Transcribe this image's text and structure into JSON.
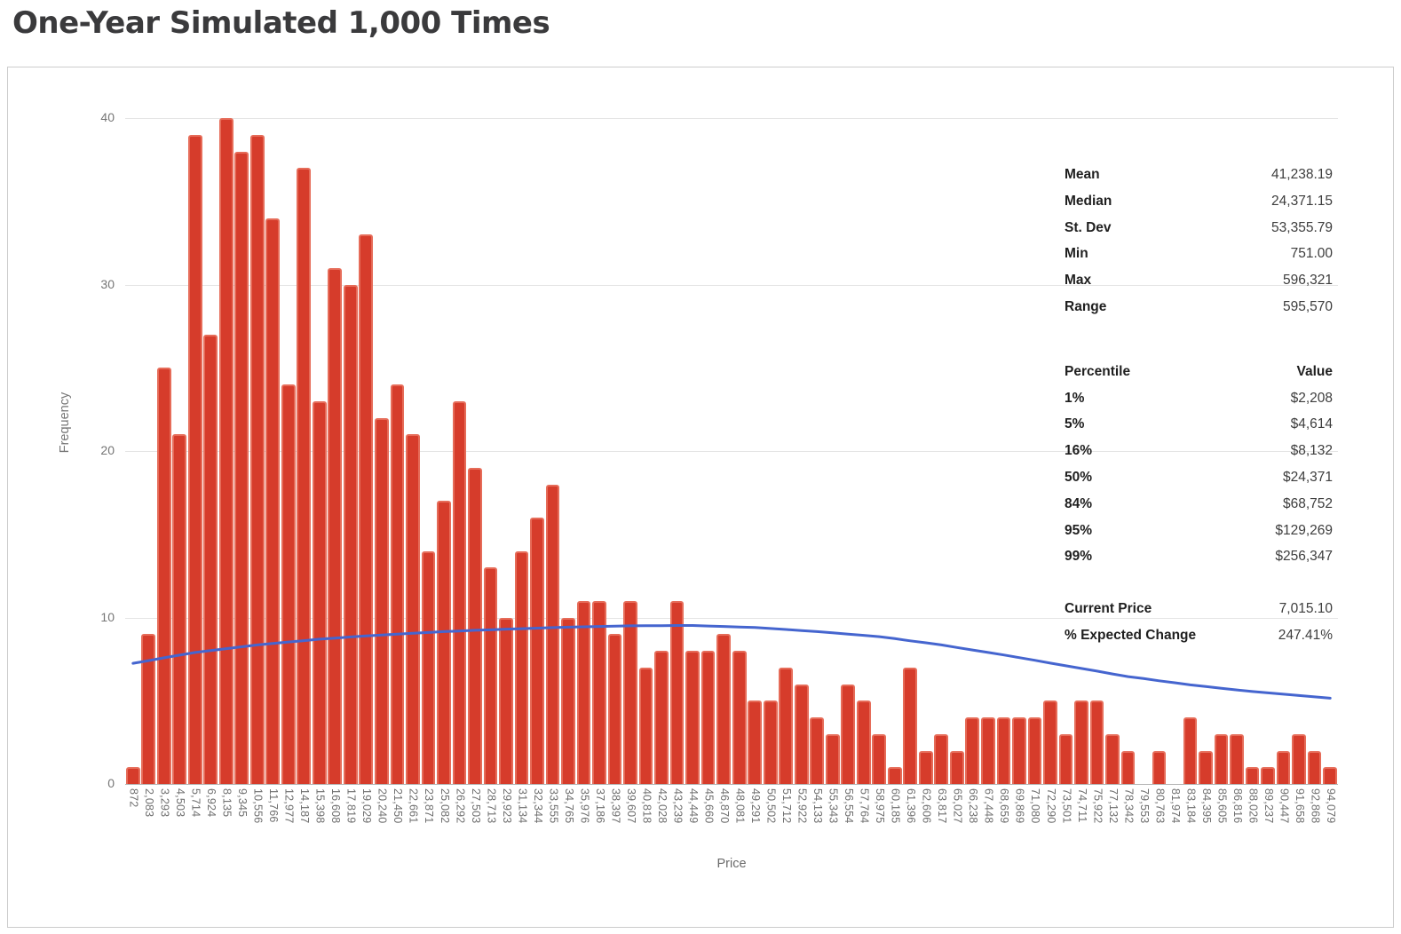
{
  "page": {
    "title": "One-Year Simulated 1,000 Times"
  },
  "chart_data": {
    "type": "bar",
    "title": "One-Year Simulated 1,000 Times",
    "xlabel": "Price",
    "ylabel": "Frequency",
    "ylim": [
      0,
      40
    ],
    "yticks": [
      0,
      10,
      20,
      30,
      40
    ],
    "grid": "horizontal only",
    "legend": "none",
    "bar_color": "#d63c2b",
    "bar_edge_color": "#e66c59",
    "trend_line_color": "#4565cf",
    "categories": [
      "872",
      "2,083",
      "3,293",
      "4,503",
      "5,714",
      "6,924",
      "8,135",
      "9,345",
      "10,556",
      "11,766",
      "12,977",
      "14,187",
      "15,398",
      "16,608",
      "17,819",
      "19,029",
      "20,240",
      "21,450",
      "22,661",
      "23,871",
      "25,082",
      "26,292",
      "27,503",
      "28,713",
      "29,923",
      "31,134",
      "32,344",
      "33,555",
      "34,765",
      "35,976",
      "37,186",
      "38,397",
      "39,607",
      "40,818",
      "42,028",
      "43,239",
      "44,449",
      "45,660",
      "46,870",
      "48,081",
      "49,291",
      "50,502",
      "51,712",
      "52,922",
      "54,133",
      "55,343",
      "56,554",
      "57,764",
      "58,975",
      "60,185",
      "61,396",
      "62,606",
      "63,817",
      "65,027",
      "66,238",
      "67,448",
      "68,659",
      "69,869",
      "71,080",
      "72,290",
      "73,501",
      "74,711",
      "75,922",
      "77,132",
      "78,342",
      "79,553",
      "80,763",
      "81,974",
      "83,184",
      "84,395",
      "85,605",
      "86,816",
      "88,026",
      "89,237",
      "90,447",
      "91,658",
      "92,868",
      "94,079"
    ],
    "values": [
      1,
      9,
      25,
      21,
      39,
      27,
      40,
      38,
      39,
      34,
      24,
      37,
      23,
      31,
      30,
      33,
      22,
      24,
      21,
      14,
      17,
      23,
      19,
      13,
      10,
      14,
      16,
      18,
      10,
      11,
      11,
      9,
      11,
      7,
      8,
      11,
      8,
      8,
      9,
      8,
      5,
      5,
      7,
      6,
      4,
      3,
      6,
      5,
      3,
      1,
      7,
      2,
      3,
      2,
      4,
      4,
      4,
      4,
      4,
      5,
      3,
      5,
      5,
      3,
      2,
      0,
      2,
      0,
      4,
      2,
      3,
      3,
      1,
      1,
      2,
      3,
      2,
      1
    ],
    "trend_line": {
      "name": "fitted-frequency-curve",
      "values": [
        7.25,
        7.41,
        7.58,
        7.74,
        7.9,
        8.01,
        8.13,
        8.24,
        8.35,
        8.44,
        8.53,
        8.61,
        8.7,
        8.76,
        8.83,
        8.89,
        8.95,
        9.0,
        9.05,
        9.1,
        9.15,
        9.19,
        9.23,
        9.26,
        9.3,
        9.33,
        9.36,
        9.39,
        9.42,
        9.44,
        9.46,
        9.48,
        9.5,
        9.51,
        9.51,
        9.52,
        9.52,
        9.49,
        9.46,
        9.43,
        9.4,
        9.34,
        9.28,
        9.21,
        9.15,
        9.08,
        9.0,
        8.93,
        8.85,
        8.73,
        8.6,
        8.48,
        8.35,
        8.2,
        8.05,
        7.9,
        7.75,
        7.59,
        7.43,
        7.26,
        7.1,
        6.94,
        6.78,
        6.61,
        6.45,
        6.33,
        6.2,
        6.08,
        5.95,
        5.85,
        5.75,
        5.65,
        5.55,
        5.47,
        5.39,
        5.31,
        5.23,
        5.15
      ]
    }
  },
  "stats": {
    "summary_rows": [
      {
        "label": "Mean",
        "value": "41,238.19"
      },
      {
        "label": "Median",
        "value": "24,371.15"
      },
      {
        "label": "St. Dev",
        "value": "53,355.79"
      },
      {
        "label": "Min",
        "value": "751.00"
      },
      {
        "label": "Max",
        "value": "596,321"
      },
      {
        "label": "Range",
        "value": "595,570"
      }
    ],
    "percentile_header": {
      "label": "Percentile",
      "value": "Value"
    },
    "percentile_rows": [
      {
        "label": "1%",
        "value": "$2,208"
      },
      {
        "label": "5%",
        "value": "$4,614"
      },
      {
        "label": "16%",
        "value": "$8,132"
      },
      {
        "label": "50%",
        "value": "$24,371"
      },
      {
        "label": "84%",
        "value": "$68,752"
      },
      {
        "label": "95%",
        "value": "$129,269"
      },
      {
        "label": "99%",
        "value": "$256,347"
      }
    ],
    "footer_rows": [
      {
        "label": "Current Price",
        "value": "7,015.10"
      },
      {
        "label": "% Expected Change",
        "value": "247.41%"
      }
    ]
  }
}
